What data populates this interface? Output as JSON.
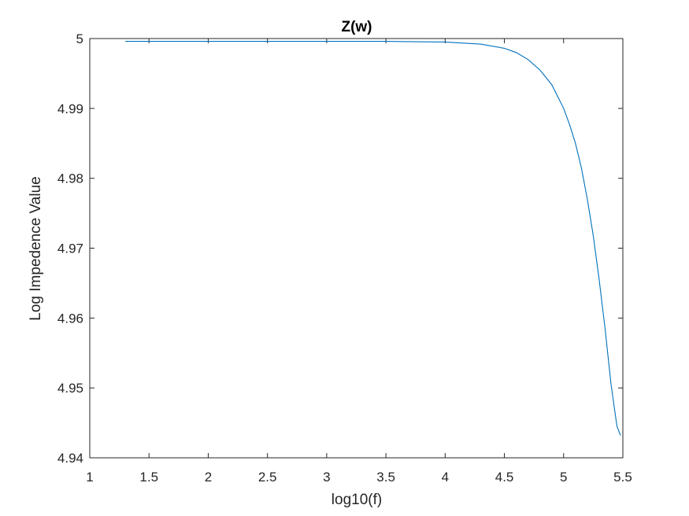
{
  "chart_data": {
    "type": "line",
    "title": "Z(w)",
    "xlabel": "log10(f)",
    "ylabel": "Log Impedence Value",
    "xlim": [
      1,
      5.5
    ],
    "ylim": [
      4.94,
      5
    ],
    "xticks": [
      1,
      1.5,
      2,
      2.5,
      3,
      3.5,
      4,
      4.5,
      5,
      5.5
    ],
    "xtick_labels": [
      "1",
      "1.5",
      "2",
      "2.5",
      "3",
      "3.5",
      "4",
      "4.5",
      "5",
      "5.5"
    ],
    "yticks": [
      4.94,
      4.95,
      4.96,
      4.97,
      4.98,
      4.99,
      5
    ],
    "ytick_labels": [
      "4.94",
      "4.95",
      "4.96",
      "4.97",
      "4.98",
      "4.99",
      "5"
    ],
    "grid": false,
    "line_color": "#0072BD",
    "series": [
      {
        "x": [
          1.3,
          2.0,
          3.0,
          3.5,
          4.0,
          4.3,
          4.5,
          4.6,
          4.7,
          4.8,
          4.9,
          5.0,
          5.05,
          5.1,
          5.15,
          5.2,
          5.25,
          5.3,
          5.35,
          5.4,
          5.45,
          5.48
        ],
        "y": [
          4.9996,
          4.9996,
          4.9996,
          4.9996,
          4.9995,
          4.9992,
          4.9986,
          4.998,
          4.997,
          4.9955,
          4.9934,
          4.99,
          4.9877,
          4.985,
          4.9815,
          4.977,
          4.9718,
          4.9655,
          4.9585,
          4.9505,
          4.9445,
          4.9432
        ]
      }
    ]
  }
}
